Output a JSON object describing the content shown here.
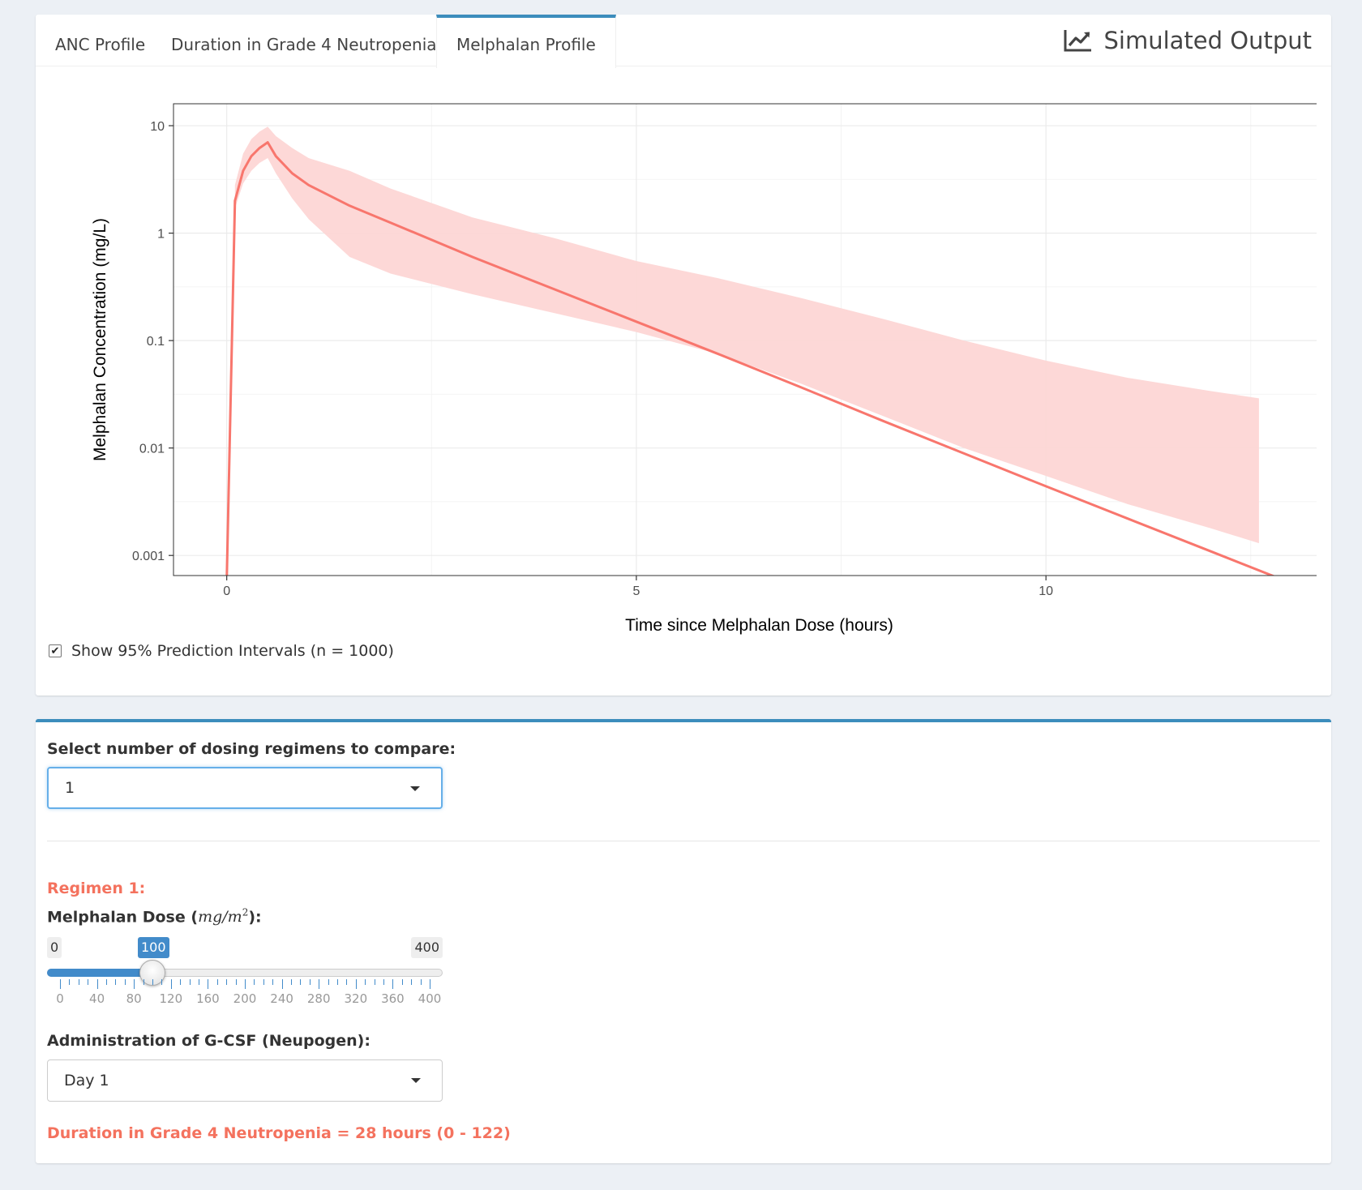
{
  "tabs": [
    {
      "label": "ANC Profile"
    },
    {
      "label": "Duration in Grade 4 Neutropenia"
    },
    {
      "label": "Melphalan Profile"
    }
  ],
  "active_tab": "Melphalan Profile",
  "box_title": "Simulated Output",
  "box_title_icon": "line-chart-icon",
  "colors": {
    "accent": "#3c8dbc",
    "series_line": "#f8766d",
    "ribbon": "#fdd6d5",
    "highlight_text": "#f4725e",
    "slider_blue": "#428bca"
  },
  "chart_data": {
    "type": "line",
    "xlabel": "Time since Melphalan Dose (hours)",
    "ylabel": "Melphalan Concentration (mg/L)",
    "x_scale": "linear",
    "y_scale": "log10",
    "xlim": [
      -0.65,
      13.65
    ],
    "ylim": [
      0.00065,
      16
    ],
    "x_ticks": [
      0,
      5,
      10
    ],
    "x_tick_labels": [
      "0",
      "5",
      "10"
    ],
    "y_ticks": [
      10,
      1,
      0.1,
      0.01,
      0.001
    ],
    "y_tick_labels": [
      "10",
      "1",
      "0.1",
      "0.01",
      "0.001"
    ],
    "grid": true,
    "series": [
      {
        "kind": "median_line",
        "x": [
          0,
          0.1,
          0.2,
          0.3,
          0.4,
          0.5,
          0.6,
          0.8,
          1.0,
          1.5,
          2,
          3,
          4,
          5,
          6,
          7,
          8,
          9,
          10,
          11,
          12,
          13
        ],
        "y": [
          0.0006,
          2.0,
          3.8,
          5.2,
          6.2,
          7.0,
          5.2,
          3.6,
          2.8,
          1.8,
          1.25,
          0.6,
          0.3,
          0.15,
          0.075,
          0.037,
          0.018,
          0.0089,
          0.0044,
          0.0022,
          0.0011,
          0.00055
        ]
      },
      {
        "kind": "prediction_interval",
        "x": [
          0.1,
          0.2,
          0.3,
          0.4,
          0.5,
          0.6,
          0.8,
          1.0,
          1.5,
          2,
          3,
          4,
          5,
          6,
          7,
          8,
          9,
          10,
          11,
          12,
          12.6
        ],
        "lower": [
          1.7,
          2.9,
          3.8,
          4.5,
          5.0,
          3.6,
          2.1,
          1.35,
          0.6,
          0.42,
          0.27,
          0.18,
          0.12,
          0.075,
          0.04,
          0.02,
          0.01,
          0.0055,
          0.003,
          0.0018,
          0.0013
        ],
        "upper": [
          2.8,
          5.5,
          7.5,
          8.8,
          9.8,
          8.0,
          6.2,
          5.0,
          3.8,
          2.6,
          1.4,
          0.9,
          0.55,
          0.38,
          0.25,
          0.16,
          0.1,
          0.065,
          0.045,
          0.034,
          0.029
        ]
      }
    ]
  },
  "pi_checkbox": {
    "label": "Show 95% Prediction Intervals (n = 1000)",
    "checked": true
  },
  "regimen_count": {
    "label": "Select number of dosing regimens to compare:",
    "value": "1"
  },
  "regimen1": {
    "header": "Regimen 1:",
    "dose_label": "Melphalan Dose (",
    "dose_unit_mg": "mg",
    "dose_unit_slash": "/",
    "dose_unit_m": "m",
    "dose_unit_exp": "2",
    "dose_label_end": "):",
    "slider": {
      "min": 0,
      "max": 400,
      "value": 100,
      "min_label": "0",
      "max_label": "400",
      "value_label": "100",
      "tick_labels": [
        "0",
        "40",
        "80",
        "120",
        "160",
        "200",
        "240",
        "280",
        "320",
        "360",
        "400"
      ]
    },
    "gcsf_label": "Administration of G-CSF (Neupogen):",
    "gcsf_value": "Day 1",
    "result": "Duration in Grade 4 Neutropenia = 28 hours (0 - 122)"
  }
}
